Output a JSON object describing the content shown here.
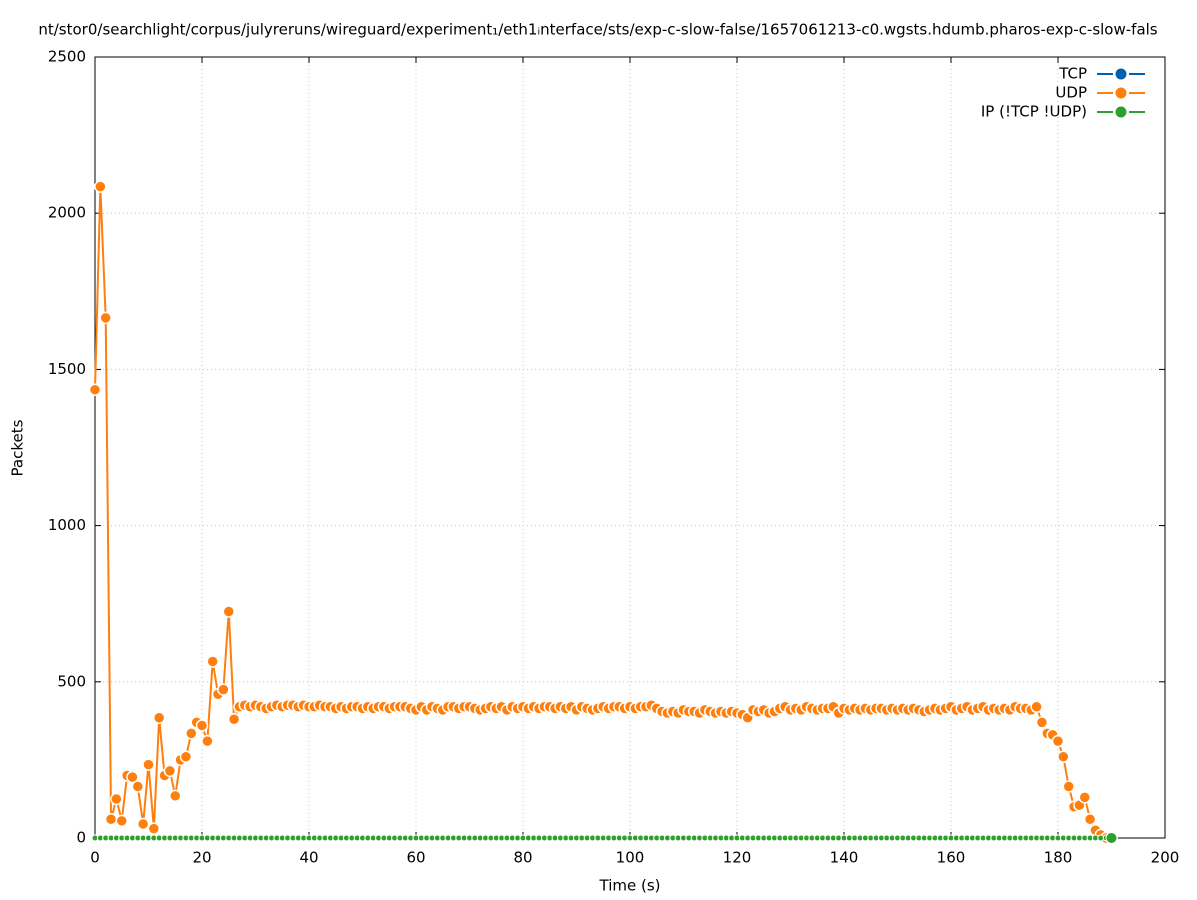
{
  "chart_data": {
    "type": "line",
    "title": "nt/stor0/searchlight/corpus/julyreruns/wireguard/experiment₁/eth1ᵢnterface/sts/exp-c-slow-false/1657061213-c0.wgsts.hdumb.pharos-exp-c-slow-fals",
    "xlabel": "Time (s)",
    "ylabel": "Packets",
    "xlim": [
      0,
      200
    ],
    "xticks": [
      0,
      20,
      40,
      60,
      80,
      100,
      120,
      140,
      160,
      180,
      200
    ],
    "ylim": [
      0,
      2500
    ],
    "yticks": [
      0,
      500,
      1000,
      1500,
      2000,
      2500
    ],
    "grid": true,
    "legend": "top-right",
    "x": [
      0,
      1,
      2,
      3,
      4,
      5,
      6,
      7,
      8,
      9,
      10,
      11,
      12,
      13,
      14,
      15,
      16,
      17,
      18,
      19,
      20,
      21,
      22,
      23,
      24,
      25,
      26,
      27,
      28,
      29,
      30,
      31,
      32,
      33,
      34,
      35,
      36,
      37,
      38,
      39,
      40,
      41,
      42,
      43,
      44,
      45,
      46,
      47,
      48,
      49,
      50,
      51,
      52,
      53,
      54,
      55,
      56,
      57,
      58,
      59,
      60,
      61,
      62,
      63,
      64,
      65,
      66,
      67,
      68,
      69,
      70,
      71,
      72,
      73,
      74,
      75,
      76,
      77,
      78,
      79,
      80,
      81,
      82,
      83,
      84,
      85,
      86,
      87,
      88,
      89,
      90,
      91,
      92,
      93,
      94,
      95,
      96,
      97,
      98,
      99,
      100,
      101,
      102,
      103,
      104,
      105,
      106,
      107,
      108,
      109,
      110,
      111,
      112,
      113,
      114,
      115,
      116,
      117,
      118,
      119,
      120,
      121,
      122,
      123,
      124,
      125,
      126,
      127,
      128,
      129,
      130,
      131,
      132,
      133,
      134,
      135,
      136,
      137,
      138,
      139,
      140,
      141,
      142,
      143,
      144,
      145,
      146,
      147,
      148,
      149,
      150,
      151,
      152,
      153,
      154,
      155,
      156,
      157,
      158,
      159,
      160,
      161,
      162,
      163,
      164,
      165,
      166,
      167,
      168,
      169,
      170,
      171,
      172,
      173,
      174,
      175,
      176,
      177,
      178,
      179,
      180,
      181,
      182,
      183,
      184,
      185,
      186,
      187,
      188,
      189,
      190
    ],
    "series": [
      {
        "name": "TCP",
        "color": "#0060ad",
        "values": [
          0,
          0,
          0,
          0,
          0,
          0,
          0,
          0,
          0,
          0,
          0,
          0,
          0,
          0,
          0,
          0,
          0,
          0,
          0,
          0,
          0,
          0,
          0,
          0,
          0,
          0,
          0,
          0,
          0,
          0,
          0,
          0,
          0,
          0,
          0,
          0,
          0,
          0,
          0,
          0,
          0,
          0,
          0,
          0,
          0,
          0,
          0,
          0,
          0,
          0,
          0,
          0,
          0,
          0,
          0,
          0,
          0,
          0,
          0,
          0,
          0,
          0,
          0,
          0,
          0,
          0,
          0,
          0,
          0,
          0,
          0,
          0,
          0,
          0,
          0,
          0,
          0,
          0,
          0,
          0,
          0,
          0,
          0,
          0,
          0,
          0,
          0,
          0,
          0,
          0,
          0,
          0,
          0,
          0,
          0,
          0,
          0,
          0,
          0,
          0,
          0,
          0,
          0,
          0,
          0,
          0,
          0,
          0,
          0,
          0,
          0,
          0,
          0,
          0,
          0,
          0,
          0,
          0,
          0,
          0,
          0,
          0,
          0,
          0,
          0,
          0,
          0,
          0,
          0,
          0,
          0,
          0,
          0,
          0,
          0,
          0,
          0,
          0,
          0,
          0,
          0,
          0,
          0,
          0,
          0,
          0,
          0,
          0,
          0,
          0,
          0,
          0,
          0,
          0,
          0,
          0,
          0,
          0,
          0,
          0,
          0,
          0,
          0,
          0,
          0,
          0,
          0,
          0,
          0,
          0,
          0,
          0,
          0,
          0,
          0,
          0,
          0,
          0,
          0,
          0,
          0,
          0,
          0,
          0,
          0,
          0,
          0,
          0,
          0,
          0,
          0
        ]
      },
      {
        "name": "UDP",
        "color": "#ff7f0e",
        "values": [
          1435,
          2085,
          1665,
          60,
          125,
          55,
          200,
          195,
          165,
          45,
          235,
          30,
          385,
          200,
          215,
          135,
          250,
          260,
          335,
          370,
          360,
          310,
          565,
          460,
          475,
          725,
          380,
          420,
          425,
          420,
          425,
          420,
          415,
          420,
          425,
          420,
          425,
          425,
          420,
          425,
          420,
          420,
          425,
          420,
          420,
          415,
          420,
          415,
          420,
          420,
          415,
          420,
          415,
          420,
          420,
          415,
          420,
          420,
          420,
          415,
          410,
          420,
          410,
          420,
          415,
          410,
          420,
          420,
          415,
          420,
          420,
          415,
          410,
          415,
          420,
          415,
          420,
          410,
          420,
          415,
          420,
          415,
          420,
          415,
          420,
          420,
          415,
          420,
          415,
          420,
          410,
          420,
          415,
          410,
          415,
          420,
          415,
          420,
          420,
          415,
          420,
          415,
          420,
          420,
          425,
          415,
          405,
          400,
          405,
          400,
          410,
          405,
          405,
          400,
          410,
          405,
          400,
          405,
          400,
          405,
          400,
          395,
          385,
          410,
          405,
          410,
          400,
          405,
          415,
          420,
          410,
          415,
          410,
          420,
          415,
          410,
          415,
          415,
          420,
          400,
          415,
          410,
          415,
          410,
          415,
          410,
          415,
          415,
          410,
          415,
          410,
          415,
          410,
          415,
          410,
          405,
          410,
          415,
          410,
          415,
          420,
          410,
          415,
          420,
          410,
          415,
          420,
          410,
          415,
          410,
          415,
          410,
          420,
          415,
          415,
          410,
          420,
          370,
          335,
          330,
          310,
          260,
          165,
          100,
          105,
          130,
          60,
          25,
          10,
          0,
          0
        ]
      },
      {
        "name": "IP (!TCP  !UDP)",
        "color": "#2ca02c",
        "values": [
          0,
          0,
          0,
          0,
          0,
          0,
          0,
          0,
          0,
          0,
          0,
          0,
          0,
          0,
          0,
          0,
          0,
          0,
          0,
          0,
          0,
          0,
          0,
          0,
          0,
          0,
          0,
          0,
          0,
          0,
          0,
          0,
          0,
          0,
          0,
          0,
          0,
          0,
          0,
          0,
          0,
          0,
          0,
          0,
          0,
          0,
          0,
          0,
          0,
          0,
          0,
          0,
          0,
          0,
          0,
          0,
          0,
          0,
          0,
          0,
          0,
          0,
          0,
          0,
          0,
          0,
          0,
          0,
          0,
          0,
          0,
          0,
          0,
          0,
          0,
          0,
          0,
          0,
          0,
          0,
          0,
          0,
          0,
          0,
          0,
          0,
          0,
          0,
          0,
          0,
          0,
          0,
          0,
          0,
          0,
          0,
          0,
          0,
          0,
          0,
          0,
          0,
          0,
          0,
          0,
          0,
          0,
          0,
          0,
          0,
          0,
          0,
          0,
          0,
          0,
          0,
          0,
          0,
          0,
          0,
          0,
          0,
          0,
          0,
          0,
          0,
          0,
          0,
          0,
          0,
          0,
          0,
          0,
          0,
          0,
          0,
          0,
          0,
          0,
          0,
          0,
          0,
          0,
          0,
          0,
          0,
          0,
          0,
          0,
          0,
          0,
          0,
          0,
          0,
          0,
          0,
          0,
          0,
          0,
          0,
          0,
          0,
          0,
          0,
          0,
          0,
          0,
          0,
          0,
          0,
          0,
          0,
          0,
          0,
          0,
          0,
          0,
          0,
          0,
          0,
          0,
          0,
          0,
          0,
          0,
          0,
          0,
          0,
          0,
          0,
          0
        ]
      }
    ]
  }
}
